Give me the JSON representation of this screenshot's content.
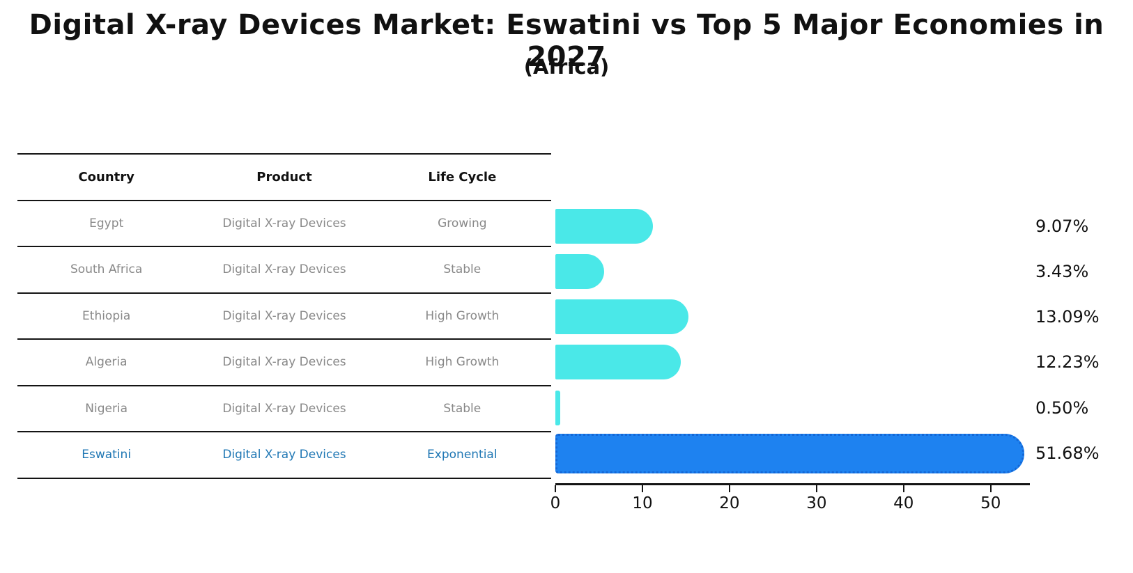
{
  "title": "Digital X-ray Devices Market: Eswatini vs Top 5 Major Economies in 2027",
  "subtitle": "(Africa)",
  "table": {
    "headers": [
      "Country",
      "Product",
      "Life Cycle"
    ],
    "rows": [
      {
        "country": "Egypt",
        "product": "Digital X-ray Devices",
        "life_cycle": "Growing",
        "highlight": false
      },
      {
        "country": "South Africa",
        "product": "Digital X-ray Devices",
        "life_cycle": "Stable",
        "highlight": false
      },
      {
        "country": "Ethiopia",
        "product": "Digital X-ray Devices",
        "life_cycle": "High Growth",
        "highlight": false
      },
      {
        "country": "Algeria",
        "product": "Digital X-ray Devices",
        "life_cycle": "High Growth",
        "highlight": false
      },
      {
        "country": "Nigeria",
        "product": "Digital X-ray Devices",
        "life_cycle": "Stable",
        "highlight": false
      },
      {
        "country": "Eswatini",
        "product": "Digital X-ray Devices",
        "life_cycle": "Exponential",
        "highlight": true
      }
    ]
  },
  "chart_data": {
    "type": "bar",
    "orientation": "horizontal",
    "title": "Digital X-ray Devices Market: Eswatini vs Top 5 Major Economies in 2027",
    "subtitle": "(Africa)",
    "categories": [
      "Egypt",
      "South Africa",
      "Ethiopia",
      "Algeria",
      "Nigeria",
      "Eswatini"
    ],
    "values": [
      9.07,
      3.43,
      13.09,
      12.23,
      0.5,
      51.68
    ],
    "value_labels": [
      "9.07%",
      "3.43%",
      "13.09%",
      "12.23%",
      "0.50%",
      "51.68%"
    ],
    "highlight_index": 5,
    "x_ticks": [
      0,
      10,
      20,
      30,
      40,
      50
    ],
    "xlim": [
      0,
      54.5
    ],
    "xlabel": "",
    "ylabel": "",
    "grid": false,
    "legend_position": "none"
  },
  "colors": {
    "bar_default": "#4AE8E8",
    "bar_highlight": "#1E82F0",
    "bar_highlight_edge": "#1467D6",
    "row_text": "#888888",
    "highlight_text": "#1F77B4",
    "heading_text": "#111111"
  }
}
